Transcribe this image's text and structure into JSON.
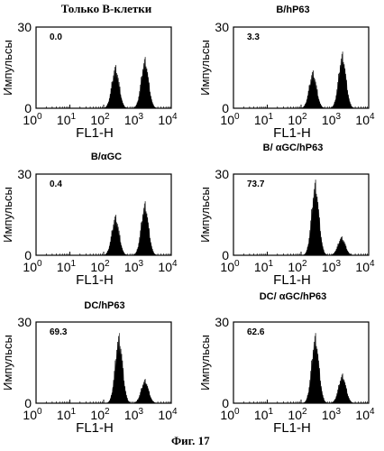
{
  "figure": {
    "caption": "Фиг. 17"
  },
  "chart_data": [
    {
      "type": "histogram",
      "title": "Только В-клетки",
      "ylabel": "Импульсы",
      "xlabel": "FL1-H",
      "xscale": "log",
      "xlim": [
        1,
        10000
      ],
      "ylim": [
        0,
        30
      ],
      "yticks": [
        "0",
        "30"
      ],
      "xticks": [
        "10^0",
        "10^1",
        "10^2",
        "10^3",
        "10^4"
      ],
      "annotation": "0.0",
      "peaks": [
        {
          "center_log10": 2.35,
          "height": 16
        },
        {
          "center_log10": 3.22,
          "height": 19
        }
      ]
    },
    {
      "type": "histogram",
      "title": "B/hP63",
      "ylabel": "Импульсы",
      "xlabel": "FL1-H",
      "xscale": "log",
      "xlim": [
        1,
        10000
      ],
      "ylim": [
        0,
        30
      ],
      "yticks": [
        "0",
        "30"
      ],
      "xticks": [
        "10^0",
        "10^1",
        "10^2",
        "10^3",
        "10^4"
      ],
      "annotation": "3.3",
      "peaks": [
        {
          "center_log10": 2.35,
          "height": 14
        },
        {
          "center_log10": 3.22,
          "height": 21
        }
      ]
    },
    {
      "type": "histogram",
      "title": "B/αGC",
      "ylabel": "Импульсы",
      "xlabel": "FL1-H",
      "xscale": "log",
      "xlim": [
        1,
        10000
      ],
      "ylim": [
        0,
        30
      ],
      "yticks": [
        "0",
        "30"
      ],
      "xticks": [
        "10^0",
        "10^1",
        "10^2",
        "10^3",
        "10^4"
      ],
      "annotation": "0.4",
      "peaks": [
        {
          "center_log10": 2.35,
          "height": 15
        },
        {
          "center_log10": 3.22,
          "height": 20
        }
      ]
    },
    {
      "type": "histogram",
      "title": "B/ αGC/hP63",
      "ylabel": "Импульсы",
      "xlabel": "FL1-H",
      "xscale": "log",
      "xlim": [
        1,
        10000
      ],
      "ylim": [
        0,
        30
      ],
      "yticks": [
        "0",
        "30"
      ],
      "xticks": [
        "10^0",
        "10^1",
        "10^2",
        "10^3",
        "10^4"
      ],
      "annotation": "73.7",
      "peaks": [
        {
          "center_log10": 2.42,
          "height": 28
        },
        {
          "center_log10": 3.2,
          "height": 7
        }
      ]
    },
    {
      "type": "histogram",
      "title": "DC/hP63",
      "ylabel": "Импульсы",
      "xlabel": "FL1-H",
      "xscale": "log",
      "xlim": [
        1,
        10000
      ],
      "ylim": [
        0,
        30
      ],
      "yticks": [
        "0",
        "30"
      ],
      "xticks": [
        "10^0",
        "10^1",
        "10^2",
        "10^3",
        "10^4"
      ],
      "annotation": "69.3",
      "peaks": [
        {
          "center_log10": 2.45,
          "height": 26
        },
        {
          "center_log10": 3.22,
          "height": 9
        }
      ]
    },
    {
      "type": "histogram",
      "title": "DC/ αGC/hP63",
      "ylabel": "Импульсы",
      "xlabel": "FL1-H",
      "xscale": "log",
      "xlim": [
        1,
        10000
      ],
      "ylim": [
        0,
        30
      ],
      "yticks": [
        "0",
        "30"
      ],
      "xticks": [
        "10^0",
        "10^1",
        "10^2",
        "10^3",
        "10^4"
      ],
      "annotation": "62.6",
      "peaks": [
        {
          "center_log10": 2.42,
          "height": 26
        },
        {
          "center_log10": 3.22,
          "height": 11
        }
      ]
    }
  ]
}
